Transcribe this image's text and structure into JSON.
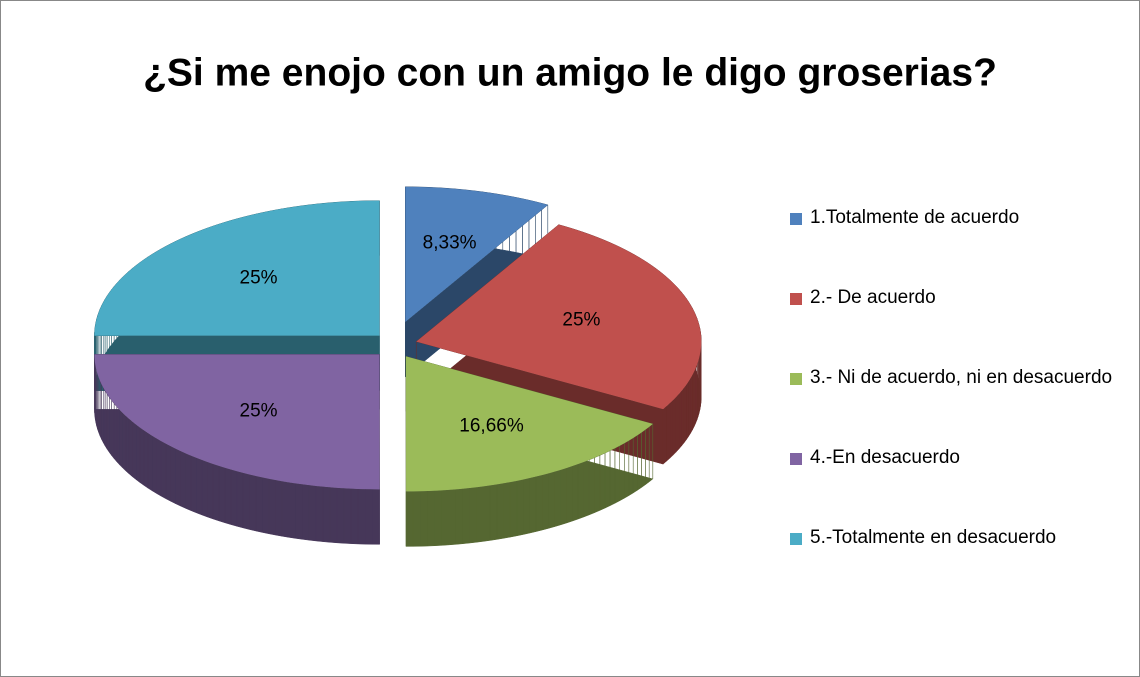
{
  "chart_data": {
    "type": "pie3d",
    "title": "¿Si me enojo con un amigo le digo groserias?",
    "categories": [
      "1.Totalmente de acuerdo",
      "2.- De acuerdo",
      "3.- Ni de acuerdo, ni en desacuerdo",
      "4.-En desacuerdo",
      "5.-Totalmente en desacuerdo"
    ],
    "values": [
      8.33,
      25,
      16.66,
      25,
      25
    ],
    "value_labels": [
      "8,33%",
      "25%",
      "16,66%",
      "25%",
      "25%"
    ],
    "colors": [
      "#4f81bd",
      "#c0504d",
      "#9bbb59",
      "#8064a2",
      "#4bacc6"
    ],
    "legend": "right"
  }
}
